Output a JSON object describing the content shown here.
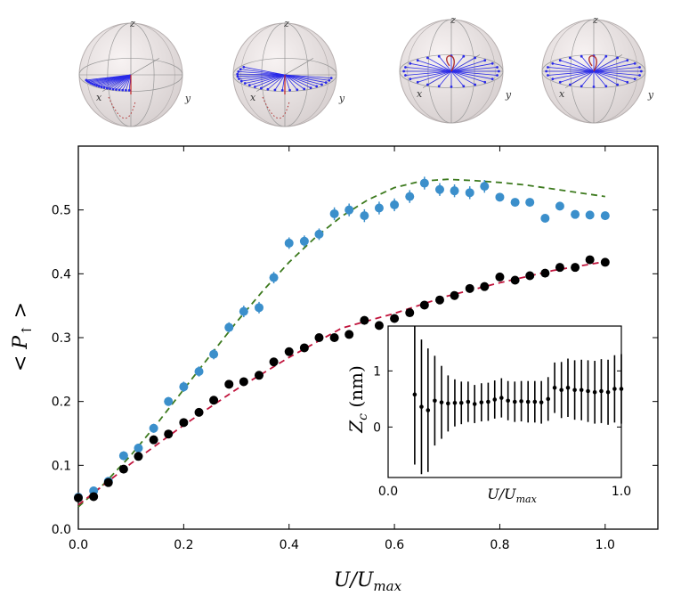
{
  "chart_data": [
    {
      "type": "scatter",
      "xlabel_base": "U/U",
      "xlabel_sub": "max",
      "ylabel_main": "< P",
      "ylabel_sub": "↑",
      "ylabel_end": " >",
      "xlim": [
        0.0,
        1.1
      ],
      "ylim": [
        0.0,
        0.6
      ],
      "xticks": [
        "0.0",
        "0.2",
        "0.4",
        "0.6",
        "0.8",
        "1.0"
      ],
      "yticks": [
        "0.0",
        "0.1",
        "0.2",
        "0.3",
        "0.4",
        "0.5"
      ],
      "grid": false,
      "series": [
        {
          "marker": "blue-circle",
          "color": "#3b8fcb",
          "x": [
            0.0,
            0.029,
            0.057,
            0.086,
            0.114,
            0.143,
            0.171,
            0.2,
            0.229,
            0.257,
            0.286,
            0.314,
            0.343,
            0.371,
            0.4,
            0.429,
            0.457,
            0.486,
            0.514,
            0.543,
            0.571,
            0.6,
            0.629,
            0.657,
            0.686,
            0.714,
            0.743,
            0.771,
            0.8,
            0.829,
            0.857,
            0.886,
            0.914,
            0.943,
            0.971,
            1.0
          ],
          "y": [
            0.05,
            0.06,
            0.075,
            0.115,
            0.127,
            0.158,
            0.2,
            0.223,
            0.247,
            0.274,
            0.316,
            0.341,
            0.347,
            0.394,
            0.448,
            0.451,
            0.462,
            0.494,
            0.5,
            0.491,
            0.503,
            0.508,
            0.521,
            0.542,
            0.532,
            0.53,
            0.527,
            0.537,
            0.52,
            0.512,
            0.512,
            0.487,
            0.506,
            0.493,
            0.492,
            0.491
          ],
          "err": [
            0.005,
            0.006,
            0.006,
            0.007,
            0.007,
            0.007,
            0.007,
            0.008,
            0.008,
            0.008,
            0.008,
            0.009,
            0.009,
            0.009,
            0.009,
            0.009,
            0.009,
            0.01,
            0.01,
            0.01,
            0.01,
            0.01,
            0.01,
            0.01,
            0.01,
            0.01,
            0.01,
            0.01,
            0.005,
            0.005,
            0.005,
            0.005,
            0.005,
            0.005,
            0.005,
            0.005
          ]
        },
        {
          "marker": "black-circle",
          "color": "#000000",
          "x": [
            0.0,
            0.029,
            0.057,
            0.086,
            0.114,
            0.143,
            0.171,
            0.2,
            0.229,
            0.257,
            0.286,
            0.314,
            0.343,
            0.371,
            0.4,
            0.429,
            0.457,
            0.486,
            0.514,
            0.543,
            0.571,
            0.6,
            0.629,
            0.657,
            0.686,
            0.714,
            0.743,
            0.771,
            0.8,
            0.829,
            0.857,
            0.886,
            0.914,
            0.943,
            0.971,
            1.0
          ],
          "y": [
            0.049,
            0.051,
            0.073,
            0.094,
            0.114,
            0.14,
            0.149,
            0.167,
            0.183,
            0.202,
            0.227,
            0.231,
            0.241,
            0.262,
            0.278,
            0.284,
            0.3,
            0.3,
            0.305,
            0.327,
            0.319,
            0.33,
            0.339,
            0.351,
            0.359,
            0.366,
            0.377,
            0.38,
            0.395,
            0.39,
            0.397,
            0.401,
            0.41,
            0.41,
            0.422,
            0.418
          ]
        }
      ],
      "fits": [
        {
          "style": "dashed",
          "color": "#3d7a1e",
          "x": [
            0.0,
            0.05,
            0.1,
            0.15,
            0.2,
            0.25,
            0.3,
            0.35,
            0.4,
            0.45,
            0.5,
            0.55,
            0.6,
            0.65,
            0.7,
            0.75,
            0.8,
            0.85,
            0.9,
            0.95,
            1.0
          ],
          "y": [
            0.035,
            0.072,
            0.116,
            0.166,
            0.219,
            0.272,
            0.324,
            0.373,
            0.418,
            0.457,
            0.49,
            0.516,
            0.535,
            0.545,
            0.548,
            0.546,
            0.543,
            0.539,
            0.533,
            0.527,
            0.521
          ]
        },
        {
          "style": "dashed",
          "color": "#c0143c",
          "x": [
            0.0,
            0.1,
            0.2,
            0.3,
            0.4,
            0.5,
            0.6,
            0.7,
            0.8,
            0.9,
            1.0
          ],
          "y": [
            0.038,
            0.103,
            0.163,
            0.219,
            0.269,
            0.315,
            0.338,
            0.365,
            0.386,
            0.405,
            0.419
          ]
        }
      ]
    },
    {
      "type": "scatter",
      "xlabel_base": "U/U",
      "xlabel_sub": "max",
      "ylabel_main": "Z",
      "ylabel_sub": "c",
      "ylabel_end": " (nm)",
      "xlim": [
        0.0,
        1.0
      ],
      "ylim": [
        -0.9,
        1.8
      ],
      "xticks": [
        "0.0",
        "1.0"
      ],
      "yticks": [
        "0",
        "1"
      ],
      "grid": false,
      "series": [
        {
          "marker": "black-dot",
          "color": "#000000",
          "x": [
            0.114,
            0.143,
            0.171,
            0.2,
            0.229,
            0.257,
            0.286,
            0.314,
            0.343,
            0.371,
            0.4,
            0.429,
            0.457,
            0.486,
            0.514,
            0.543,
            0.571,
            0.6,
            0.629,
            0.657,
            0.686,
            0.714,
            0.743,
            0.771,
            0.8,
            0.829,
            0.857,
            0.886,
            0.914,
            0.943,
            0.971,
            1.0
          ],
          "y": [
            0.58,
            0.36,
            0.3,
            0.47,
            0.44,
            0.42,
            0.43,
            0.43,
            0.45,
            0.41,
            0.44,
            0.45,
            0.49,
            0.52,
            0.47,
            0.45,
            0.46,
            0.45,
            0.45,
            0.44,
            0.5,
            0.7,
            0.66,
            0.7,
            0.66,
            0.66,
            0.64,
            0.62,
            0.64,
            0.62,
            0.68,
            0.68
          ],
          "err": [
            1.25,
            1.2,
            1.1,
            0.8,
            0.65,
            0.5,
            0.42,
            0.38,
            0.36,
            0.34,
            0.34,
            0.34,
            0.34,
            0.35,
            0.35,
            0.36,
            0.36,
            0.37,
            0.37,
            0.38,
            0.39,
            0.45,
            0.5,
            0.52,
            0.53,
            0.54,
            0.55,
            0.56,
            0.57,
            0.58,
            0.6,
            0.62
          ]
        }
      ]
    }
  ],
  "spheres": [
    {
      "z": "z",
      "x": "x",
      "y": "y",
      "fan": "short"
    },
    {
      "z": "z",
      "x": "x",
      "y": "y",
      "fan": "wide"
    },
    {
      "z": "z",
      "x": "x",
      "y": "y",
      "fan": "full"
    },
    {
      "z": "z",
      "x": "x",
      "y": "y",
      "fan": "full"
    }
  ]
}
